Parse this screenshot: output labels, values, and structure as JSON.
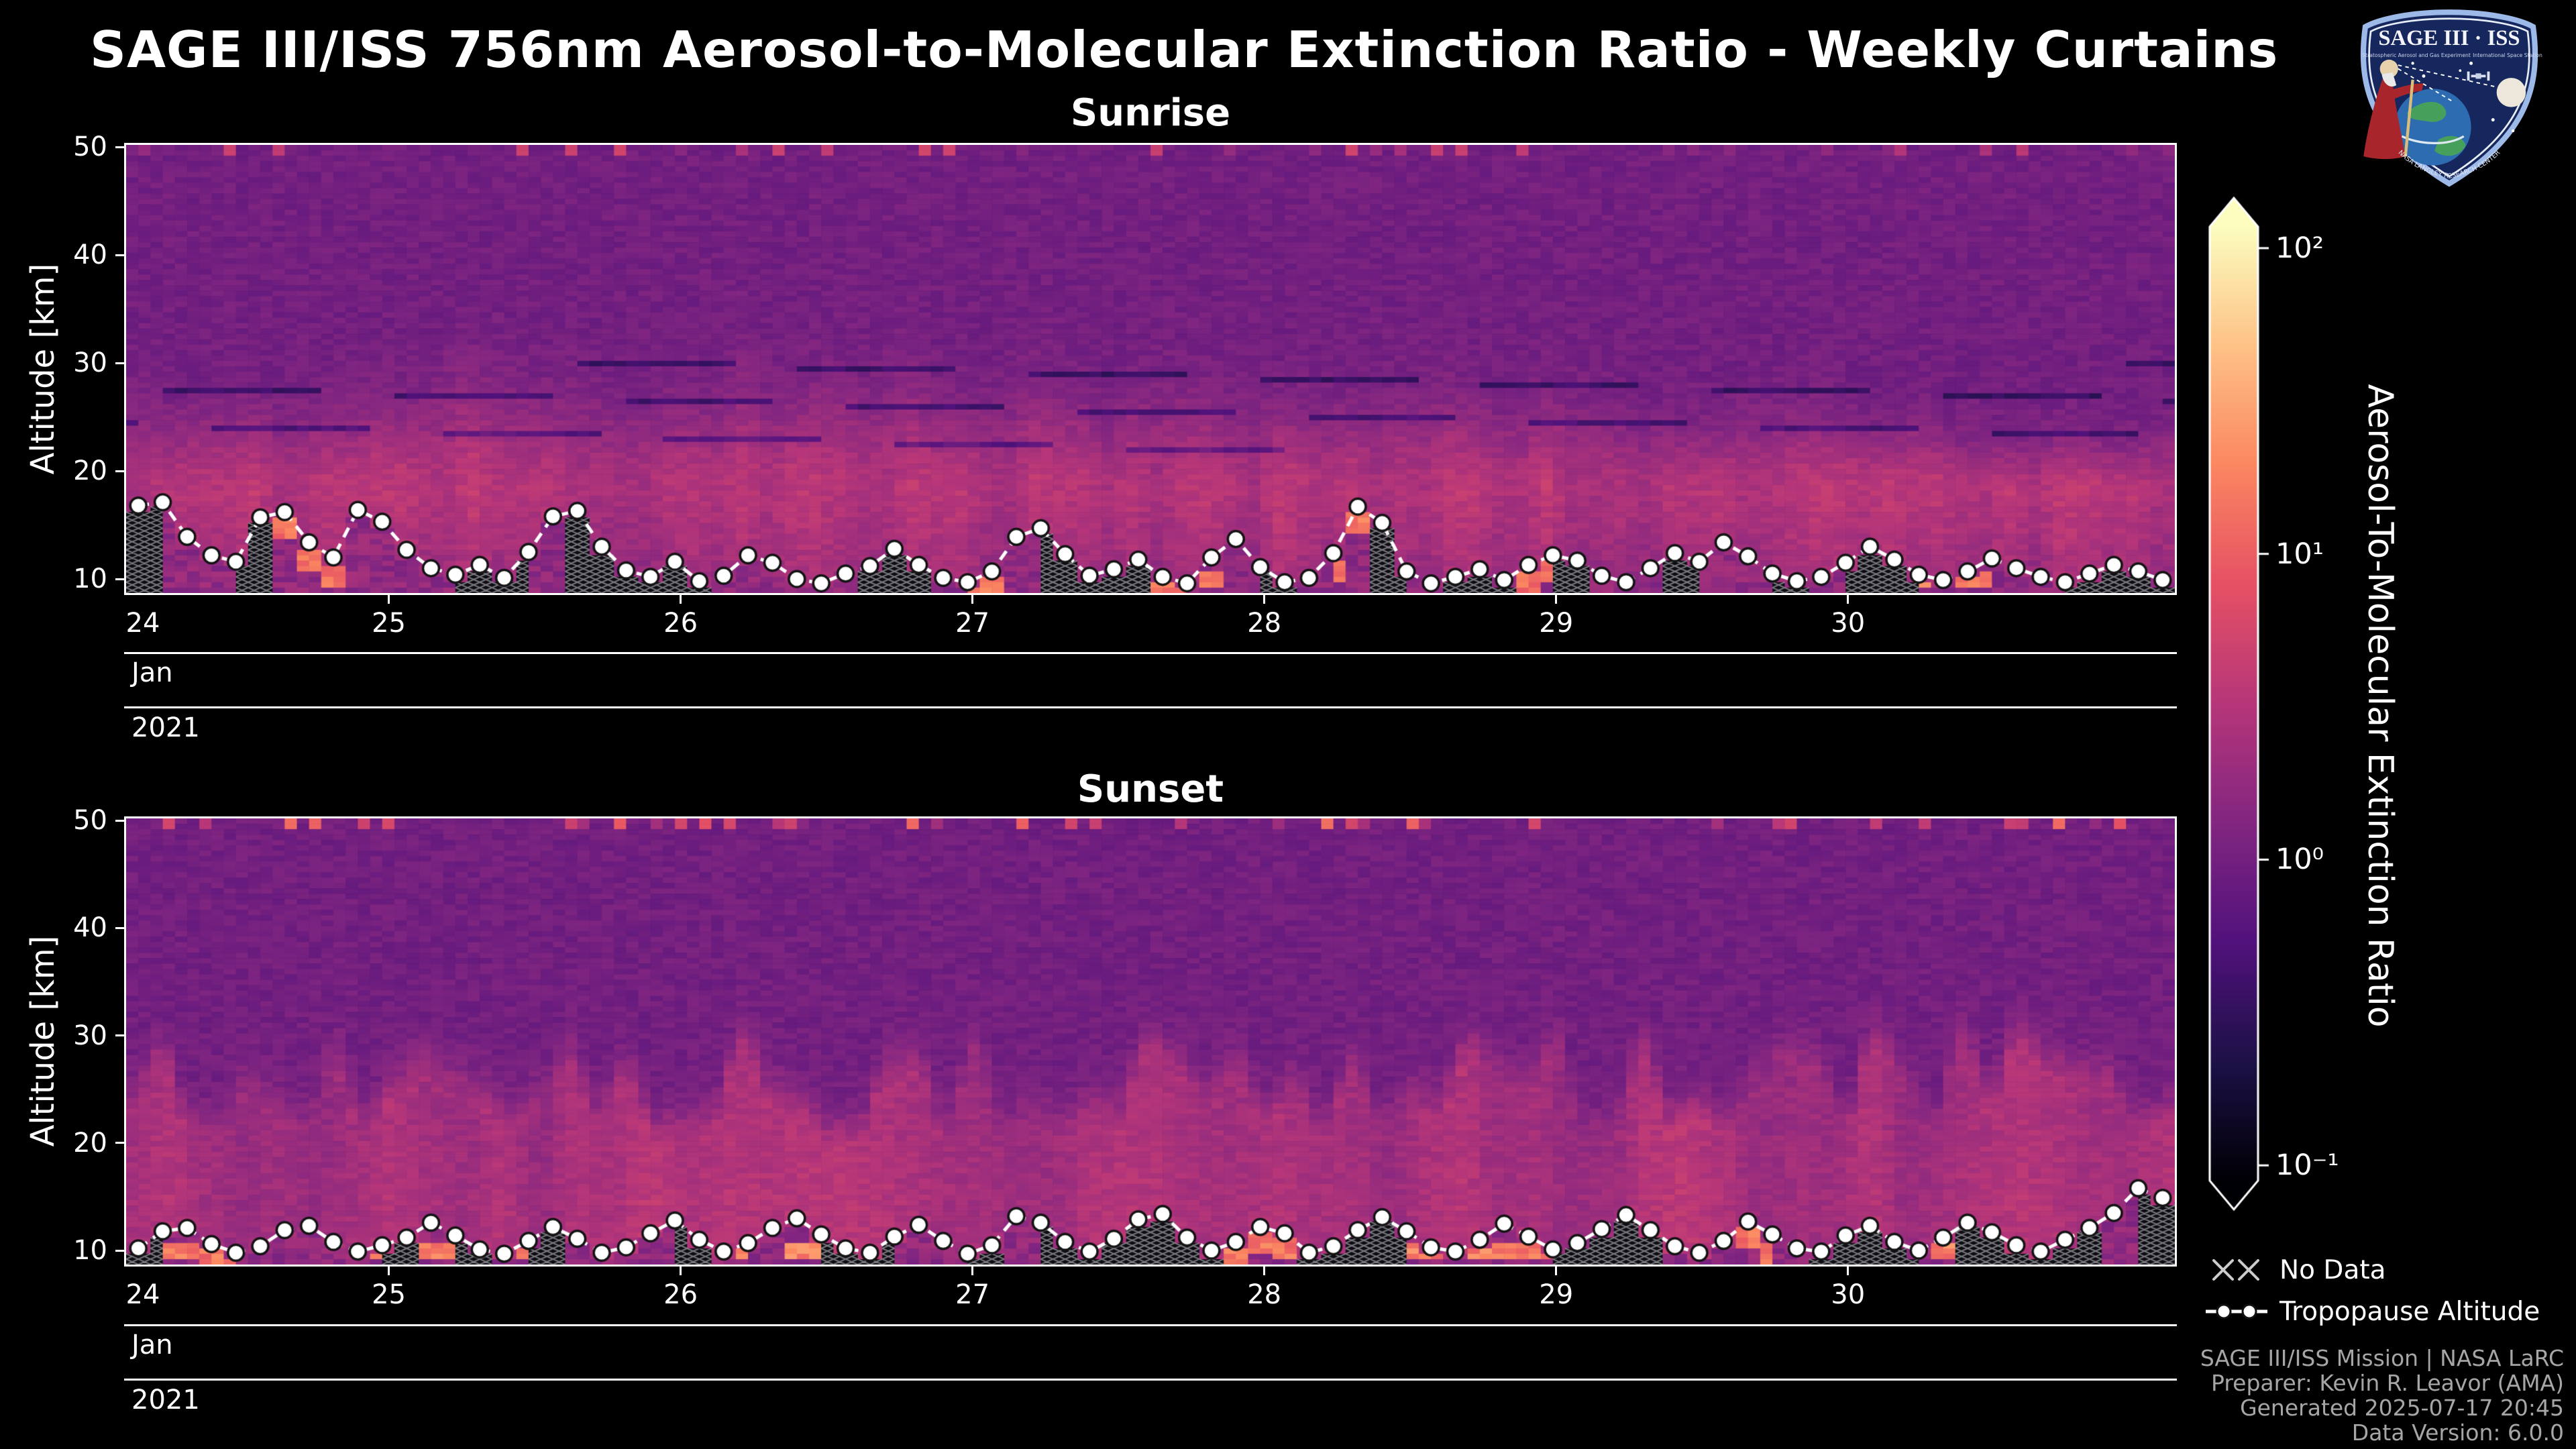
{
  "title": "SAGE III/ISS 756nm Aerosol-to-Molecular Extinction Ratio - Weekly Curtains",
  "logo": {
    "title": "SAGE III · ISS",
    "sub_left": "Stratospheric Aerosol and Gas Experiment",
    "sub_right": "International Space Station",
    "ring_text": "NASA LANGLEY RESEARCH CENTER"
  },
  "colorbar": {
    "label": "Aerosol-To-Molecular Extinction Ratio",
    "scale": "log",
    "log_range": [
      -1.05,
      2.07
    ],
    "ticks": [
      {
        "label": "10²",
        "log": 2
      },
      {
        "label": "10¹",
        "log": 1
      },
      {
        "label": "10⁰",
        "log": 0
      },
      {
        "label": "10⁻¹",
        "log": -1
      }
    ],
    "colormap": [
      [
        0,
        "#000004"
      ],
      [
        0.125,
        "#1d1147"
      ],
      [
        0.25,
        "#51127c"
      ],
      [
        0.375,
        "#822681"
      ],
      [
        0.5,
        "#b63679"
      ],
      [
        0.625,
        "#e65164"
      ],
      [
        0.75,
        "#fb8761"
      ],
      [
        0.875,
        "#fec287"
      ],
      [
        1,
        "#fcfdbf"
      ]
    ]
  },
  "legend": {
    "no_data": "No Data",
    "tropopause": "Tropopause Altitude"
  },
  "footer": {
    "lines": [
      "SAGE III/ISS Mission | NASA LaRC",
      "Preparer: Kevin R. Leavor (AMA)",
      "Generated 2025-07-17 20:45",
      "Data Version: 6.0.0"
    ]
  },
  "chart_data": [
    {
      "type": "heatmap",
      "title": "Sunrise",
      "ylabel": "Altitude [km]",
      "ylim": [
        8.7,
        50.2
      ],
      "y_ticks": [
        10,
        20,
        30,
        40,
        50
      ],
      "x_ticks": [
        24,
        25,
        26,
        27,
        28,
        29,
        30
      ],
      "x_range_day": [
        24.1,
        31.12
      ],
      "x_month": "Jan",
      "x_year": "2021",
      "date_range": "2021-01-24 to 2021-01-30",
      "color_log_range": [
        -1.05,
        2.07
      ],
      "colorbar_label": "Aerosol-To-Molecular Extinction Ratio",
      "tropopause_km": [
        16.8,
        17.1,
        13.9,
        12.2,
        11.6,
        15.7,
        16.2,
        13.4,
        12.0,
        16.4,
        15.3,
        12.7,
        11.0,
        10.4,
        11.3,
        10.1,
        12.5,
        15.8,
        16.3,
        13.0,
        10.8,
        10.2,
        11.6,
        9.8,
        10.3,
        12.2,
        11.5,
        10.0,
        9.6,
        10.5,
        11.2,
        12.8,
        11.3,
        10.1,
        9.7,
        10.7,
        13.9,
        14.7,
        12.3,
        10.3,
        10.9,
        11.8,
        10.2,
        9.6,
        12.0,
        13.7,
        11.1,
        9.7,
        10.1,
        12.4,
        16.7,
        15.2,
        10.7,
        9.6,
        10.2,
        10.9,
        9.9,
        11.3,
        12.2,
        11.7,
        10.3,
        9.7,
        11.0,
        12.4,
        11.6,
        13.4,
        12.1,
        10.5,
        9.8,
        10.2,
        11.5,
        13.0,
        11.8,
        10.4,
        9.9,
        10.7,
        11.9,
        11.0,
        10.2,
        9.7,
        10.5,
        11.3,
        10.7,
        9.9
      ],
      "texture": {
        "style": "sunrise",
        "seed": 7,
        "band_center_km": 18,
        "band_peak_ratio": 3,
        "description": "procedural approximation of the measured aerosol curtain"
      }
    },
    {
      "type": "heatmap",
      "title": "Sunset",
      "ylabel": "Altitude [km]",
      "ylim": [
        8.7,
        50.2
      ],
      "y_ticks": [
        10,
        20,
        30,
        40,
        50
      ],
      "x_ticks": [
        24,
        25,
        26,
        27,
        28,
        29,
        30
      ],
      "x_range_day": [
        24.1,
        31.12
      ],
      "x_month": "Jan",
      "x_year": "2021",
      "date_range": "2021-01-24 to 2021-01-30",
      "color_log_range": [
        -1.05,
        2.07
      ],
      "colorbar_label": "Aerosol-To-Molecular Extinction Ratio",
      "tropopause_km": [
        10.2,
        11.8,
        12.1,
        10.6,
        9.8,
        10.4,
        11.9,
        12.3,
        10.8,
        9.9,
        10.5,
        11.2,
        12.6,
        11.4,
        10.1,
        9.7,
        10.9,
        12.2,
        11.1,
        9.8,
        10.3,
        11.6,
        12.8,
        11.0,
        9.9,
        10.7,
        12.1,
        13.0,
        11.5,
        10.2,
        9.8,
        11.3,
        12.4,
        10.9,
        9.7,
        10.5,
        13.2,
        12.6,
        10.8,
        9.9,
        11.1,
        12.9,
        13.4,
        11.2,
        10.0,
        10.8,
        12.2,
        11.6,
        9.8,
        10.4,
        11.9,
        13.1,
        11.8,
        10.3,
        9.9,
        11.0,
        12.5,
        11.3,
        10.1,
        10.7,
        12.0,
        13.3,
        11.9,
        10.4,
        9.8,
        10.9,
        12.7,
        11.5,
        10.2,
        9.9,
        11.4,
        12.3,
        10.8,
        10.0,
        11.2,
        12.6,
        11.7,
        10.5,
        9.9,
        11.0,
        12.1,
        13.5,
        15.8,
        14.9
      ],
      "texture": {
        "style": "sunset",
        "seed": 23,
        "band_center_km": 19,
        "band_peak_ratio": 2.6,
        "description": "procedural approximation of the measured aerosol curtain"
      }
    }
  ]
}
